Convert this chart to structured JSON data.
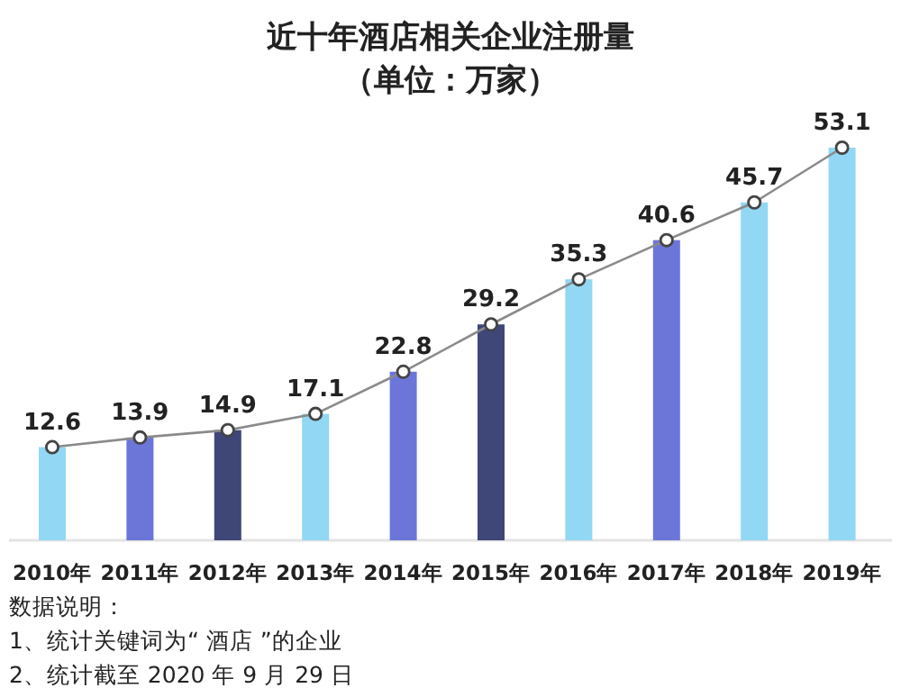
{
  "chart_data": {
    "type": "bar",
    "title": "近十年酒店相关企业注册量",
    "subtitle": "（单位：万家）",
    "categories": [
      "2010年",
      "2011年",
      "2012年",
      "2013年",
      "2014年",
      "2015年",
      "2016年",
      "2017年",
      "2018年",
      "2019年"
    ],
    "series": [
      {
        "colors": [
          "#92d7f3",
          "#6c76d9",
          "#3f4678",
          "#92d7f3",
          "#6c76d9",
          "#3f4678",
          "#92d7f3",
          "#6c76d9",
          "#92d7f3",
          "#92d7f3"
        ],
        "values": [
          12.6,
          13.9,
          14.9,
          17.1,
          22.8,
          29.2,
          35.3,
          40.6,
          45.7,
          53.1
        ]
      },
      {
        "type": "line",
        "color": "#8a8a8a",
        "marker": "circle",
        "values": [
          12.6,
          13.9,
          14.9,
          17.1,
          22.8,
          29.2,
          35.3,
          40.6,
          45.7,
          53.1
        ],
        "value_labels": [
          "12.6",
          "13.9",
          "14.9",
          "17.1",
          "22.8",
          "29.2",
          "35.3",
          "40.6",
          "45.7",
          "53.1"
        ]
      }
    ],
    "annotations": [
      "数据说明：",
      "1、统计关键词为“ 酒店 ”的企业",
      "2、统计截至 2020 年 9 月 29 日"
    ]
  }
}
